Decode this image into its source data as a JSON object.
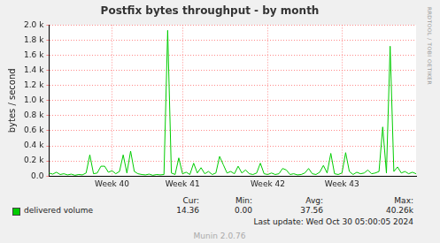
{
  "chart_data": {
    "type": "line",
    "title": "Postfix bytes throughput - by month",
    "y_label": "bytes / second",
    "categories": [
      null,
      null,
      null,
      null,
      null,
      null,
      null,
      null,
      null,
      null,
      null,
      null,
      null,
      null,
      null,
      null,
      null,
      "Week 40",
      null,
      null,
      null,
      null,
      null,
      null,
      null,
      null,
      null,
      null,
      null,
      null,
      null,
      null,
      null,
      null,
      null,
      null,
      "Week 41",
      null,
      null,
      null,
      null,
      null,
      null,
      null,
      null,
      null,
      null,
      null,
      null,
      null,
      null,
      null,
      null,
      null,
      null,
      null,
      null,
      null,
      null,
      "Week 42",
      null,
      null,
      null,
      null,
      null,
      null,
      null,
      null,
      null,
      null,
      null,
      null,
      null,
      null,
      null,
      null,
      null,
      null,
      null,
      "Week 43",
      null,
      null,
      null,
      null,
      null,
      null,
      null,
      null,
      null,
      null,
      null,
      null,
      null,
      null,
      null,
      null,
      null,
      null,
      null,
      null
    ],
    "series": [
      {
        "name": "delivered volume",
        "color": "#00cc00",
        "values": [
          40,
          25,
          50,
          20,
          30,
          15,
          25,
          10,
          20,
          15,
          40,
          280,
          30,
          40,
          130,
          130,
          50,
          70,
          30,
          60,
          280,
          40,
          330,
          60,
          30,
          20,
          15,
          25,
          10,
          20,
          15,
          20,
          1930,
          40,
          20,
          240,
          30,
          50,
          20,
          170,
          40,
          110,
          30,
          60,
          20,
          40,
          260,
          150,
          40,
          60,
          30,
          130,
          40,
          80,
          30,
          20,
          40,
          170,
          30,
          20,
          40,
          20,
          30,
          100,
          80,
          20,
          30,
          15,
          20,
          40,
          100,
          30,
          20,
          50,
          140,
          40,
          300,
          30,
          20,
          40,
          310,
          60,
          20,
          50,
          30,
          40,
          80,
          30,
          40,
          60,
          650,
          40,
          1720,
          60,
          120,
          40,
          60,
          30,
          50,
          30
        ]
      }
    ],
    "ylim": [
      0,
      2000
    ],
    "yticks": [
      {
        "value": 0,
        "label": "0.0"
      },
      {
        "value": 200,
        "label": "0.2 k"
      },
      {
        "value": 400,
        "label": "0.4 k"
      },
      {
        "value": 600,
        "label": "0.6 k"
      },
      {
        "value": 800,
        "label": "0.8 k"
      },
      {
        "value": 1000,
        "label": "1.0 k"
      },
      {
        "value": 1200,
        "label": "1.2 k"
      },
      {
        "value": 1400,
        "label": "1.4 k"
      },
      {
        "value": 1600,
        "label": "1.6 k"
      },
      {
        "value": 1800,
        "label": "1.8 k"
      },
      {
        "value": 2000,
        "label": "2.0 k"
      }
    ],
    "grid": true,
    "legend": "bottom",
    "stats": [
      {
        "label": "Cur:",
        "value": "14.36"
      },
      {
        "label": "Min:",
        "value": "0.00"
      },
      {
        "label": "Avg:",
        "value": "37.56"
      },
      {
        "label": "Max:",
        "value": "40.26k"
      }
    ],
    "last_update": "Last update: Wed Oct 30 05:00:05 2024",
    "credit": "Munin 2.0.76",
    "side_text": "RRDTOOL / TOBI OETIKER"
  }
}
